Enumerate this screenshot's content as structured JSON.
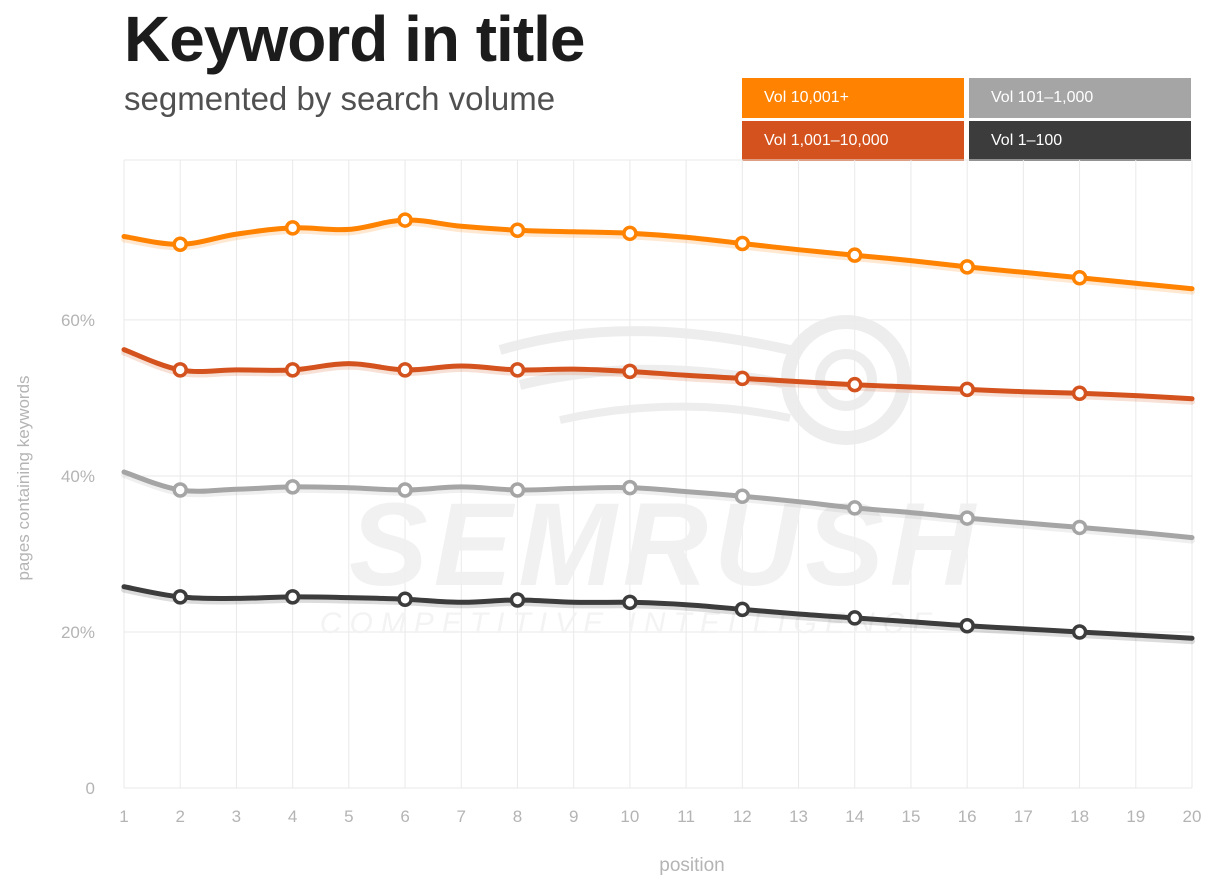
{
  "header": {
    "title": "Keyword in title",
    "subtitle": "segmented by search volume"
  },
  "chart_data": {
    "type": "line",
    "title": "Keyword in title",
    "subtitle": "segmented by search volume",
    "xlabel": "position",
    "ylabel": "pages containing keywords",
    "x": [
      1,
      2,
      3,
      4,
      5,
      6,
      7,
      8,
      9,
      10,
      11,
      12,
      13,
      14,
      15,
      16,
      17,
      18,
      19,
      20
    ],
    "x_ticks": [
      "1",
      "2",
      "3",
      "4",
      "5",
      "6",
      "7",
      "8",
      "9",
      "10",
      "11",
      "12",
      "13",
      "14",
      "15",
      "16",
      "17",
      "18",
      "19",
      "20"
    ],
    "y_ticks": [
      {
        "value": 0,
        "label": "0"
      },
      {
        "value": 20,
        "label": "20%"
      },
      {
        "value": 40,
        "label": "40%"
      },
      {
        "value": 60,
        "label": "60%"
      }
    ],
    "ylim": [
      0,
      80.5
    ],
    "grid": true,
    "legend_position": "top-right",
    "marker_x": [
      2,
      4,
      6,
      8,
      10,
      12,
      14,
      16,
      18
    ],
    "series": [
      {
        "name": "Vol 10,001+",
        "color": "#ff8200",
        "values": [
          70.7,
          69.7,
          71.0,
          71.8,
          71.6,
          72.8,
          72.0,
          71.5,
          71.3,
          71.1,
          70.6,
          69.8,
          69.0,
          68.3,
          67.6,
          66.8,
          66.1,
          65.4,
          64.7,
          64.0
        ]
      },
      {
        "name": "Vol 1,001–10,000",
        "color": "#d3521d",
        "values": [
          56.2,
          53.6,
          53.6,
          53.6,
          54.4,
          53.6,
          54.1,
          53.6,
          53.7,
          53.4,
          52.9,
          52.5,
          52.1,
          51.7,
          51.4,
          51.1,
          50.8,
          50.6,
          50.3,
          49.9
        ]
      },
      {
        "name": "Vol 101–1,000",
        "color": "#a5a5a5",
        "values": [
          40.5,
          38.2,
          38.3,
          38.6,
          38.5,
          38.2,
          38.6,
          38.2,
          38.4,
          38.5,
          38.0,
          37.4,
          36.7,
          35.9,
          35.3,
          34.6,
          34.0,
          33.4,
          32.8,
          32.1
        ]
      },
      {
        "name": "Vol 1–100",
        "color": "#3c3c3c",
        "values": [
          25.8,
          24.5,
          24.3,
          24.5,
          24.4,
          24.2,
          23.8,
          24.1,
          23.8,
          23.8,
          23.5,
          22.9,
          22.3,
          21.8,
          21.3,
          20.8,
          20.4,
          20.0,
          19.6,
          19.2
        ]
      }
    ]
  },
  "watermark": {
    "brand": "SEMRUSH",
    "tagline": "COMPETITIVE INTELLIGENCE"
  }
}
